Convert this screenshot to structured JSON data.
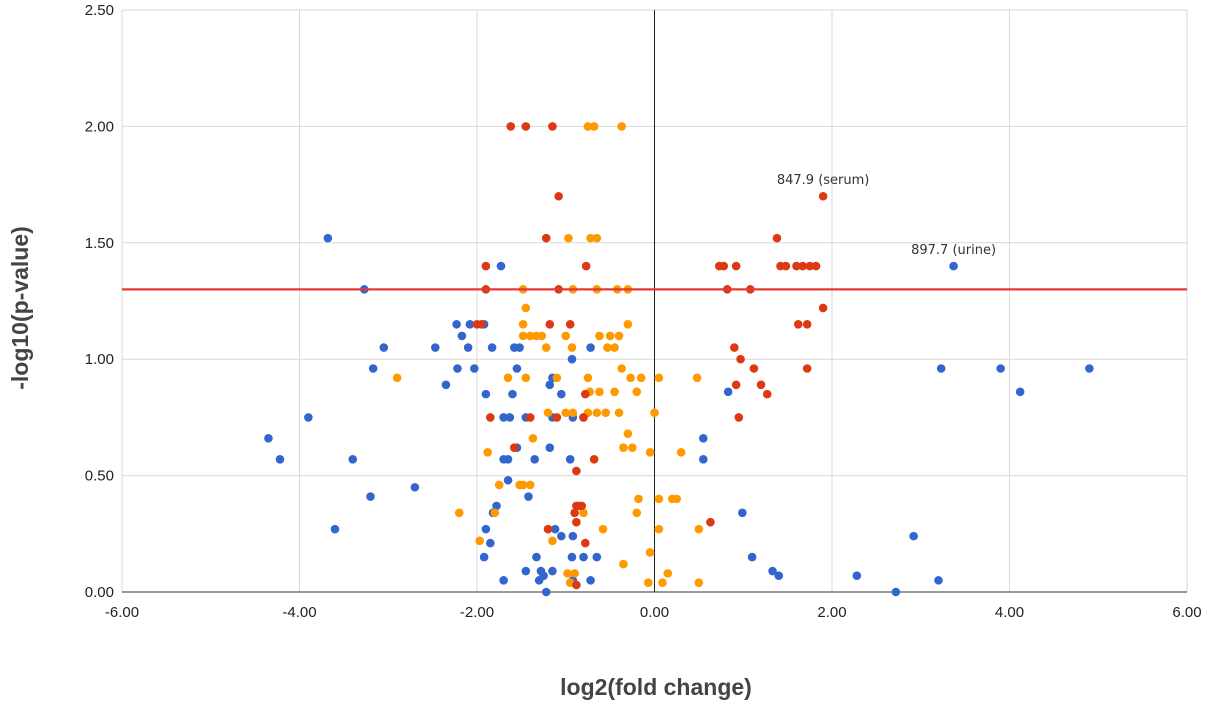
{
  "chart_data": {
    "type": "scatter",
    "title": "",
    "xlabel": "log2(fold change)",
    "ylabel": "-log10(p-value)",
    "xlim": [
      -6,
      6
    ],
    "ylim": [
      0,
      2.5
    ],
    "x_ticks": [
      "-6.00",
      "-4.00",
      "-2.00",
      "0.00",
      "2.00",
      "4.00",
      "6.00"
    ],
    "y_ticks": [
      "0.00",
      "0.50",
      "1.00",
      "1.50",
      "2.00",
      "2.50"
    ],
    "grid": true,
    "legend": "none",
    "threshold_line": {
      "y": 1.3,
      "color": "#e53935"
    },
    "zero_line": {
      "x": 0,
      "color": "#222222"
    },
    "annotations": [
      {
        "text": "847.9 (serum)",
        "x": 1.9,
        "y": 1.7
      },
      {
        "text": "897.7 (urine)",
        "x": 3.37,
        "y": 1.4
      }
    ],
    "series": [
      {
        "color": "#3366cc",
        "points": [
          [
            -3.68,
            1.52
          ],
          [
            -3.27,
            1.3
          ],
          [
            -1.73,
            1.4
          ],
          [
            -2.23,
            1.15
          ],
          [
            -2.08,
            1.15
          ],
          [
            -1.92,
            1.15
          ],
          [
            -2.17,
            1.1
          ],
          [
            -2.47,
            1.05
          ],
          [
            -2.1,
            1.05
          ],
          [
            -1.83,
            1.05
          ],
          [
            -1.58,
            1.05
          ],
          [
            -1.52,
            1.05
          ],
          [
            -0.93,
            1.0
          ],
          [
            -0.72,
            1.05
          ],
          [
            -3.05,
            1.05
          ],
          [
            -3.17,
            0.96
          ],
          [
            -2.22,
            0.96
          ],
          [
            -2.03,
            0.96
          ],
          [
            -1.55,
            0.96
          ],
          [
            -1.15,
            0.92
          ],
          [
            -2.35,
            0.89
          ],
          [
            -1.18,
            0.89
          ],
          [
            -1.9,
            0.85
          ],
          [
            -1.6,
            0.85
          ],
          [
            -1.05,
            0.85
          ],
          [
            -3.9,
            0.75
          ],
          [
            -1.7,
            0.75
          ],
          [
            -1.63,
            0.75
          ],
          [
            -1.45,
            0.75
          ],
          [
            -1.15,
            0.75
          ],
          [
            -0.92,
            0.75
          ],
          [
            -0.8,
            0.75
          ],
          [
            -4.35,
            0.66
          ],
          [
            -1.55,
            0.62
          ],
          [
            -1.18,
            0.62
          ],
          [
            -4.22,
            0.57
          ],
          [
            -3.4,
            0.57
          ],
          [
            -1.7,
            0.57
          ],
          [
            -1.65,
            0.57
          ],
          [
            -1.35,
            0.57
          ],
          [
            -0.95,
            0.57
          ],
          [
            -1.65,
            0.48
          ],
          [
            -1.42,
            0.41
          ],
          [
            -2.7,
            0.45
          ],
          [
            -3.2,
            0.41
          ],
          [
            -1.78,
            0.37
          ],
          [
            -1.82,
            0.34
          ],
          [
            -1.12,
            0.27
          ],
          [
            -1.05,
            0.24
          ],
          [
            -0.92,
            0.24
          ],
          [
            -3.6,
            0.27
          ],
          [
            -1.9,
            0.27
          ],
          [
            -1.85,
            0.21
          ],
          [
            -1.92,
            0.15
          ],
          [
            -1.33,
            0.15
          ],
          [
            -0.93,
            0.15
          ],
          [
            -0.8,
            0.15
          ],
          [
            -0.65,
            0.15
          ],
          [
            -1.45,
            0.09
          ],
          [
            -1.28,
            0.09
          ],
          [
            -1.15,
            0.09
          ],
          [
            -1.3,
            0.05
          ],
          [
            -1.25,
            0.07
          ],
          [
            -1.7,
            0.05
          ],
          [
            -0.92,
            0.05
          ],
          [
            -0.72,
            0.05
          ],
          [
            -1.22,
            0.0
          ],
          [
            0.55,
            0.66
          ],
          [
            0.55,
            0.57
          ],
          [
            0.83,
            0.86
          ],
          [
            0.99,
            0.34
          ],
          [
            1.1,
            0.15
          ],
          [
            1.33,
            0.09
          ],
          [
            1.4,
            0.07
          ],
          [
            2.28,
            0.07
          ],
          [
            2.72,
            0.0
          ],
          [
            2.92,
            0.24
          ],
          [
            3.2,
            0.05
          ],
          [
            3.23,
            0.96
          ],
          [
            3.9,
            0.96
          ],
          [
            4.12,
            0.86
          ],
          [
            4.9,
            0.96
          ],
          [
            3.37,
            1.4
          ]
        ]
      },
      {
        "color": "#ff9900",
        "points": [
          [
            -0.75,
            2.0
          ],
          [
            -0.68,
            2.0
          ],
          [
            -0.37,
            2.0
          ],
          [
            -0.97,
            1.52
          ],
          [
            -0.72,
            1.52
          ],
          [
            -0.65,
            1.52
          ],
          [
            -1.48,
            1.3
          ],
          [
            -0.92,
            1.3
          ],
          [
            -0.65,
            1.3
          ],
          [
            -0.42,
            1.3
          ],
          [
            -0.3,
            1.3
          ],
          [
            -1.45,
            1.22
          ],
          [
            -1.48,
            1.15
          ],
          [
            -1.48,
            1.1
          ],
          [
            -1.4,
            1.1
          ],
          [
            -1.33,
            1.1
          ],
          [
            -1.27,
            1.1
          ],
          [
            -1.0,
            1.1
          ],
          [
            -0.62,
            1.1
          ],
          [
            -0.5,
            1.1
          ],
          [
            -0.4,
            1.1
          ],
          [
            -0.3,
            1.15
          ],
          [
            -1.22,
            1.05
          ],
          [
            -0.53,
            1.05
          ],
          [
            -0.45,
            1.05
          ],
          [
            -0.93,
            1.05
          ],
          [
            -2.9,
            0.92
          ],
          [
            -1.65,
            0.92
          ],
          [
            -1.45,
            0.92
          ],
          [
            -1.1,
            0.92
          ],
          [
            -0.75,
            0.92
          ],
          [
            -0.37,
            0.96
          ],
          [
            -0.27,
            0.92
          ],
          [
            -0.15,
            0.92
          ],
          [
            0.05,
            0.92
          ],
          [
            0.48,
            0.92
          ],
          [
            -0.73,
            0.86
          ],
          [
            -0.62,
            0.86
          ],
          [
            -0.45,
            0.86
          ],
          [
            -0.2,
            0.86
          ],
          [
            -1.2,
            0.77
          ],
          [
            -1.0,
            0.77
          ],
          [
            -0.92,
            0.77
          ],
          [
            -0.75,
            0.77
          ],
          [
            -0.65,
            0.77
          ],
          [
            -0.55,
            0.77
          ],
          [
            -0.4,
            0.77
          ],
          [
            0.0,
            0.77
          ],
          [
            -0.3,
            0.68
          ],
          [
            -1.37,
            0.66
          ],
          [
            -0.35,
            0.62
          ],
          [
            -0.25,
            0.62
          ],
          [
            -0.05,
            0.6
          ],
          [
            0.3,
            0.6
          ],
          [
            -1.88,
            0.6
          ],
          [
            -1.75,
            0.46
          ],
          [
            -1.52,
            0.46
          ],
          [
            -1.48,
            0.46
          ],
          [
            -1.4,
            0.46
          ],
          [
            -0.18,
            0.4
          ],
          [
            0.05,
            0.4
          ],
          [
            0.2,
            0.4
          ],
          [
            0.25,
            0.4
          ],
          [
            -2.2,
            0.34
          ],
          [
            -1.8,
            0.34
          ],
          [
            -0.8,
            0.34
          ],
          [
            -0.2,
            0.34
          ],
          [
            0.5,
            0.27
          ],
          [
            -0.58,
            0.27
          ],
          [
            0.05,
            0.27
          ],
          [
            -1.97,
            0.22
          ],
          [
            -1.15,
            0.22
          ],
          [
            -0.35,
            0.12
          ],
          [
            -0.05,
            0.17
          ],
          [
            -0.98,
            0.08
          ],
          [
            -0.9,
            0.08
          ],
          [
            0.15,
            0.08
          ],
          [
            -0.07,
            0.04
          ],
          [
            -0.95,
            0.04
          ],
          [
            0.09,
            0.04
          ],
          [
            0.5,
            0.04
          ]
        ]
      },
      {
        "color": "#dc3912",
        "points": [
          [
            -1.62,
            2.0
          ],
          [
            -1.45,
            2.0
          ],
          [
            -1.15,
            2.0
          ],
          [
            -1.08,
            1.7
          ],
          [
            -1.22,
            1.52
          ],
          [
            -1.9,
            1.4
          ],
          [
            -0.77,
            1.4
          ],
          [
            -1.9,
            1.3
          ],
          [
            -1.08,
            1.3
          ],
          [
            -2.0,
            1.15
          ],
          [
            -1.95,
            1.15
          ],
          [
            -1.18,
            1.15
          ],
          [
            -0.95,
            1.15
          ],
          [
            -1.85,
            0.75
          ],
          [
            -1.4,
            0.75
          ],
          [
            -1.1,
            0.75
          ],
          [
            -0.78,
            0.85
          ],
          [
            -0.8,
            0.75
          ],
          [
            -1.58,
            0.62
          ],
          [
            -0.68,
            0.57
          ],
          [
            -0.88,
            0.52
          ],
          [
            -0.88,
            0.37
          ],
          [
            -0.85,
            0.37
          ],
          [
            -0.82,
            0.37
          ],
          [
            -0.9,
            0.34
          ],
          [
            -0.88,
            0.3
          ],
          [
            -1.2,
            0.27
          ],
          [
            -0.78,
            0.21
          ],
          [
            -0.88,
            0.03
          ],
          [
            0.63,
            0.3
          ],
          [
            0.73,
            1.4
          ],
          [
            0.78,
            1.4
          ],
          [
            0.92,
            1.4
          ],
          [
            1.42,
            1.4
          ],
          [
            1.48,
            1.4
          ],
          [
            1.6,
            1.4
          ],
          [
            1.67,
            1.4
          ],
          [
            1.75,
            1.4
          ],
          [
            1.82,
            1.4
          ],
          [
            1.38,
            1.52
          ],
          [
            0.82,
            1.3
          ],
          [
            1.08,
            1.3
          ],
          [
            1.9,
            1.22
          ],
          [
            1.62,
            1.15
          ],
          [
            1.72,
            1.15
          ],
          [
            0.9,
            1.05
          ],
          [
            0.97,
            1.0
          ],
          [
            1.12,
            0.96
          ],
          [
            1.72,
            0.96
          ],
          [
            0.92,
            0.89
          ],
          [
            1.2,
            0.89
          ],
          [
            1.27,
            0.85
          ],
          [
            0.95,
            0.75
          ],
          [
            1.9,
            1.7
          ]
        ]
      }
    ]
  }
}
